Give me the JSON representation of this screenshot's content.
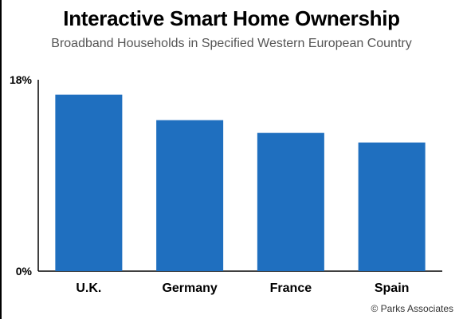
{
  "chart_title": "Interactive Smart Home Ownership",
  "chart_subtitle": "Broadband Households in Specified Western European Country",
  "credit": "© Parks Associates",
  "colors": {
    "bar": "#1f6fbf",
    "axis": "#000000",
    "text": "#000000"
  },
  "chart_data": {
    "type": "bar",
    "title": "Interactive Smart Home Ownership",
    "subtitle": "Broadband Households in Specified Western European Country",
    "categories": [
      "U.K.",
      "Germany",
      "France",
      "Spain"
    ],
    "values": [
      16.6,
      14.2,
      13.0,
      12.1
    ],
    "ylim": [
      0,
      18
    ],
    "y_tick_labels": [
      "0%",
      "18%"
    ],
    "xlabel": "",
    "ylabel": "",
    "grid": false,
    "legend": "none"
  }
}
